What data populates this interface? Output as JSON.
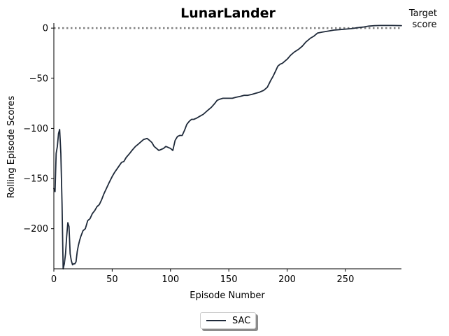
{
  "chart_data": {
    "type": "line",
    "title": "LunarLander",
    "xlabel": "Episode Number",
    "ylabel": "Rolling Episode Scores",
    "xlim": [
      0,
      298
    ],
    "ylim": [
      -240,
      5
    ],
    "xticks": [
      0,
      50,
      100,
      150,
      200,
      250
    ],
    "yticks": [
      0,
      -50,
      -100,
      -150,
      -200
    ],
    "grid": false,
    "legend_position": "bottom-center",
    "target": {
      "value": 0,
      "label": "Target\nscore",
      "style": "dotted",
      "color": "#808080"
    },
    "series": [
      {
        "name": "SAC",
        "color": "#1f2a3a",
        "x": [
          0,
          1,
          2,
          3,
          4,
          5,
          6,
          7,
          8,
          9,
          10,
          11,
          12,
          13,
          14,
          15,
          16,
          17,
          18,
          19,
          20,
          21,
          22,
          23,
          25,
          27,
          29,
          31,
          33,
          35,
          37,
          39,
          41,
          43,
          45,
          47,
          50,
          52,
          55,
          58,
          60,
          62,
          65,
          67,
          70,
          72,
          75,
          77,
          80,
          82,
          84,
          86,
          88,
          90,
          92,
          94,
          96,
          98,
          100,
          102,
          104,
          106,
          108,
          110,
          112,
          114,
          116,
          118,
          120,
          122,
          125,
          128,
          130,
          132,
          135,
          138,
          140,
          142,
          145,
          148,
          150,
          153,
          156,
          160,
          163,
          166,
          170,
          173,
          176,
          180,
          183,
          186,
          188,
          190,
          192,
          194,
          196,
          198,
          200,
          203,
          206,
          210,
          213,
          216,
          220,
          223,
          226,
          230,
          235,
          240,
          245,
          250,
          255,
          260,
          265,
          270,
          275,
          280,
          285,
          290,
          298
        ],
        "y": [
          -160,
          -163,
          -125,
          -118,
          -105,
          -101,
          -125,
          -175,
          -240,
          -235,
          -225,
          -208,
          -194,
          -198,
          -225,
          -232,
          -236,
          -235,
          -235,
          -233,
          -223,
          -217,
          -212,
          -208,
          -202,
          -200,
          -192,
          -190,
          -185,
          -182,
          -178,
          -176,
          -171,
          -165,
          -160,
          -155,
          -148,
          -144,
          -139,
          -134,
          -133,
          -129,
          -125,
          -122,
          -118,
          -116,
          -113,
          -111,
          -110,
          -112,
          -114,
          -118,
          -120,
          -122,
          -121,
          -120,
          -118,
          -119,
          -120,
          -122,
          -112,
          -108,
          -107,
          -107,
          -102,
          -96,
          -93,
          -91,
          -91,
          -90,
          -88,
          -86,
          -84,
          -82,
          -79,
          -75,
          -72,
          -71,
          -70,
          -70,
          -70,
          -70,
          -69,
          -68,
          -67,
          -67,
          -66,
          -65,
          -64,
          -62,
          -59,
          -52,
          -48,
          -43,
          -38,
          -36,
          -35,
          -33,
          -31,
          -27,
          -24,
          -21,
          -18,
          -14,
          -10,
          -8,
          -5,
          -4,
          -3,
          -2,
          -1.5,
          -1,
          -0.5,
          0.3,
          1,
          2,
          2.5,
          2.6,
          2.6,
          2.6,
          2.5
        ]
      }
    ]
  }
}
